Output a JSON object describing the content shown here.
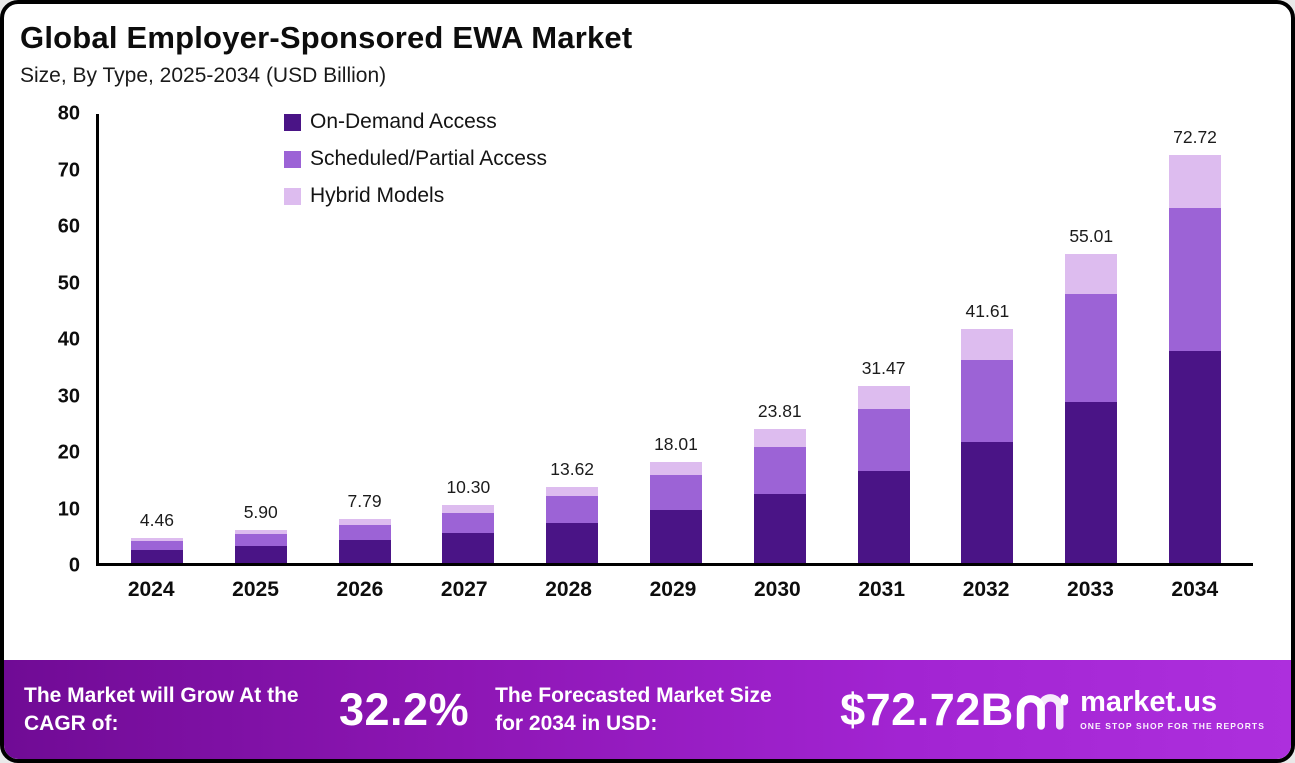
{
  "header": {
    "title": "Global Employer-Sponsored EWA Market",
    "subtitle": "Size, By Type, 2025-2034 (USD Billion)"
  },
  "chart_data": {
    "type": "bar",
    "stacked": true,
    "title": "Global Employer-Sponsored EWA Market Size, By Type, 2025-2034 (USD Billion)",
    "xlabel": "",
    "ylabel": "",
    "ylim": [
      0,
      80
    ],
    "yticks": [
      0,
      10,
      20,
      30,
      40,
      50,
      60,
      70,
      80
    ],
    "grid": false,
    "legend_position": "top-left-inside",
    "categories": [
      "2024",
      "2025",
      "2026",
      "2027",
      "2028",
      "2029",
      "2030",
      "2031",
      "2032",
      "2033",
      "2034"
    ],
    "series": [
      {
        "name": "On-Demand Access",
        "color": "#4A1486",
        "values": [
          2.32,
          3.07,
          4.05,
          5.36,
          7.08,
          9.37,
          12.38,
          16.36,
          21.64,
          28.61,
          37.81
        ]
      },
      {
        "name": "Scheduled/Partial Access",
        "color": "#9C63D6",
        "values": [
          1.56,
          2.07,
          2.73,
          3.6,
          4.77,
          6.3,
          8.33,
          11.01,
          14.56,
          19.25,
          25.45
        ]
      },
      {
        "name": "Hybrid Models",
        "color": "#DDBCEF",
        "values": [
          0.58,
          0.76,
          1.01,
          1.34,
          1.77,
          2.34,
          3.1,
          4.1,
          5.41,
          7.15,
          9.46
        ]
      }
    ],
    "totals": [
      "4.46",
      "5.90",
      "7.79",
      "10.30",
      "13.62",
      "18.01",
      "23.81",
      "31.47",
      "41.61",
      "55.01",
      "72.72"
    ]
  },
  "footer": {
    "cagr_label": "The Market will Grow At the CAGR of:",
    "cagr_value": "32.2%",
    "forecast_label": "The Forecasted Market Size for 2034 in USD:",
    "forecast_value": "$72.72B",
    "brand": "market.us",
    "brand_tagline": "ONE STOP SHOP FOR THE REPORTS"
  }
}
